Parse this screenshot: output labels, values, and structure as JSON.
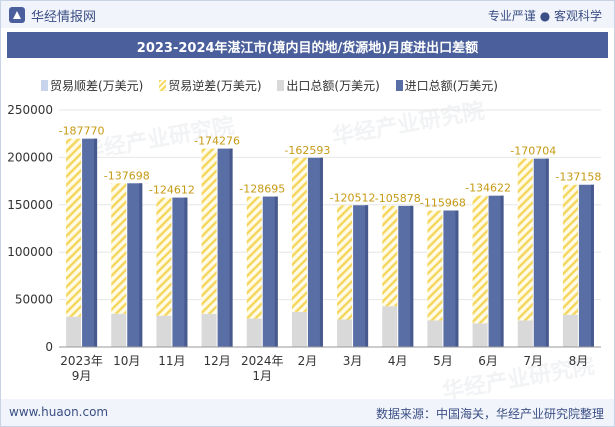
{
  "header": {
    "brand": "华经情报网",
    "slogan": "专业严谨 ● 客观科学"
  },
  "footer": {
    "website": "www.huaon.com",
    "source": "数据来源：中国海关，华经产业研究院整理"
  },
  "watermark": "华经产业研究院",
  "colors": {
    "surplus": "#c8d4ec",
    "deficit": "#f5d760",
    "export": "#d9d9d9",
    "import": "#5a6ea6",
    "title_bg": "#4a5f9b"
  },
  "chart_data": {
    "type": "bar",
    "title": "2023-2024年湛江市(境内目的地/货源地)月度进出口差额",
    "categories": [
      "2023年\n9月",
      "10月",
      "11月",
      "12月",
      "2024年\n1月",
      "2月",
      "3月",
      "4月",
      "5月",
      "6月",
      "7月",
      "8月"
    ],
    "series": [
      {
        "name": "贸易顺差(万美元)",
        "values": [
          null,
          null,
          null,
          null,
          null,
          null,
          null,
          null,
          null,
          null,
          null,
          null
        ]
      },
      {
        "name": "贸易逆差(万美元)",
        "values": [
          -187770,
          -137698,
          -124612,
          -174276,
          -128695,
          -162593,
          -120512,
          -105878,
          -115968,
          -134622,
          -170704,
          -137158
        ]
      },
      {
        "name": "出口总额(万美元)",
        "values": [
          32000,
          35000,
          33000,
          35000,
          30000,
          37000,
          29000,
          43000,
          28000,
          25000,
          28000,
          34000
        ]
      },
      {
        "name": "进口总额(万美元)",
        "values": [
          219770,
          172698,
          157612,
          209276,
          158695,
          199593,
          149512,
          148878,
          143968,
          159622,
          198704,
          171158
        ]
      }
    ],
    "data_labels": [
      "-187770",
      "-137698",
      "-124612",
      "-174276",
      "-128695",
      "-162593",
      "-120512",
      "-105878",
      "-115968",
      "-134622",
      "-170704",
      "-137158"
    ],
    "yticks": [
      "0",
      "50000",
      "100000",
      "150000",
      "200000",
      "250000"
    ],
    "ylim": [
      0,
      250000
    ],
    "legend": "top"
  }
}
